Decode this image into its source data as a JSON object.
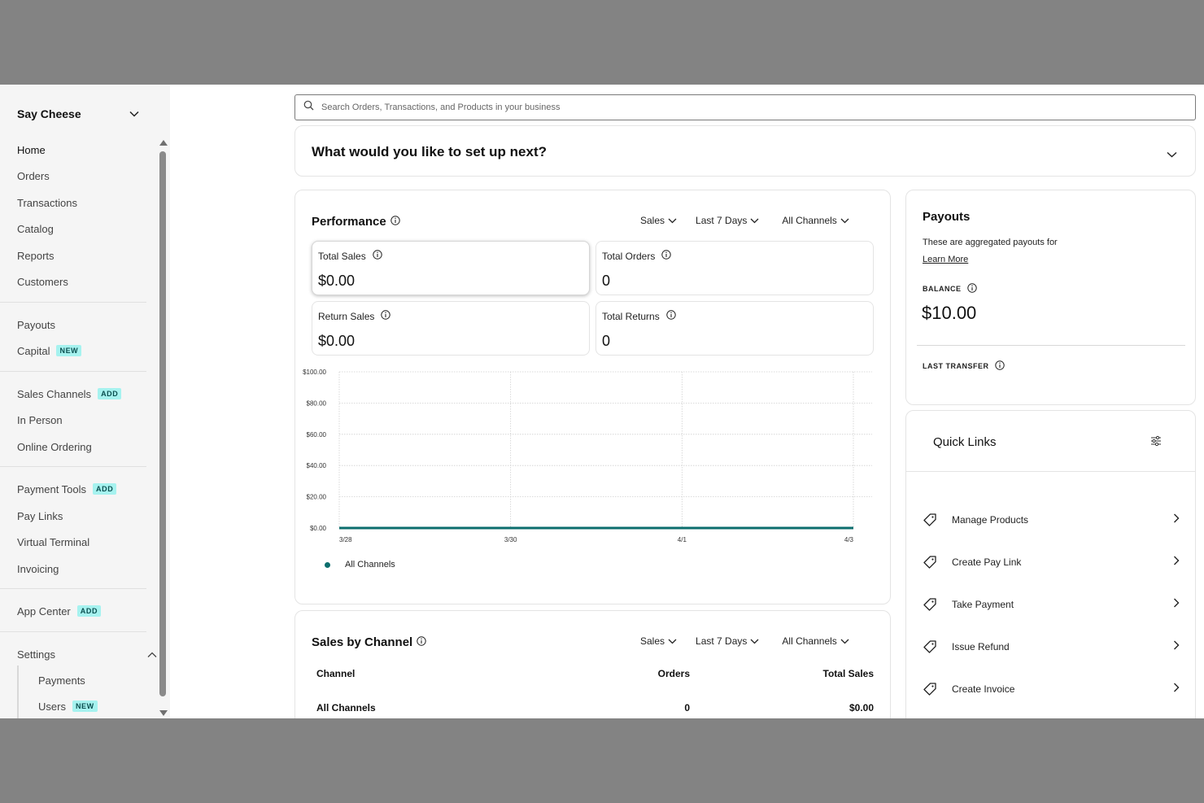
{
  "sidebar": {
    "business_name": "Say Cheese",
    "groups": [
      [
        {
          "label": "Home",
          "active": true
        },
        {
          "label": "Orders"
        },
        {
          "label": "Transactions"
        },
        {
          "label": "Catalog"
        },
        {
          "label": "Reports"
        },
        {
          "label": "Customers"
        }
      ],
      [
        {
          "label": "Payouts"
        },
        {
          "label": "Capital",
          "badge": "NEW"
        }
      ],
      [
        {
          "label": "Sales Channels",
          "badge": "ADD"
        },
        {
          "label": "In Person"
        },
        {
          "label": "Online Ordering"
        }
      ],
      [
        {
          "label": "Payment Tools",
          "badge": "ADD"
        },
        {
          "label": "Pay Links"
        },
        {
          "label": "Virtual Terminal"
        },
        {
          "label": "Invoicing"
        }
      ],
      [
        {
          "label": "App Center",
          "badge": "ADD"
        }
      ]
    ],
    "settings": {
      "label": "Settings",
      "children": [
        {
          "label": "Payments"
        },
        {
          "label": "Users",
          "badge": "NEW"
        }
      ]
    }
  },
  "search": {
    "placeholder": "Search Orders, Transactions, and Products in your business"
  },
  "setup": {
    "title": "What would you like to set up next?"
  },
  "performance": {
    "title": "Performance",
    "filters": [
      "Sales",
      "Last 7 Days",
      "All Channels"
    ],
    "metrics": [
      {
        "label": "Total Sales",
        "value": "$0.00",
        "selected": true
      },
      {
        "label": "Total Orders",
        "value": "0"
      },
      {
        "label": "Return Sales",
        "value": "$0.00"
      },
      {
        "label": "Total Returns",
        "value": "0"
      }
    ],
    "legend": "All Channels"
  },
  "chart_data": {
    "type": "line",
    "x": [
      "3/28",
      "3/30",
      "4/1",
      "4/3"
    ],
    "y_ticks": [
      "$100.00",
      "$80.00",
      "$60.00",
      "$40.00",
      "$20.00",
      "$0.00"
    ],
    "ylim": [
      0,
      100
    ],
    "series": [
      {
        "name": "All Channels",
        "color": "#0c6e6d",
        "values": [
          0,
          0,
          0,
          0
        ]
      }
    ],
    "grid": true,
    "legend_position": "bottom-left"
  },
  "sales_by_channel": {
    "title": "Sales by Channel",
    "filters": [
      "Sales",
      "Last 7 Days",
      "All Channels"
    ],
    "columns": [
      "Channel",
      "Orders",
      "Total Sales"
    ],
    "rows": [
      [
        "All Channels",
        "0",
        "$0.00"
      ]
    ]
  },
  "payouts": {
    "title": "Payouts",
    "description": "These are aggregated payouts for",
    "learn_more": "Learn More",
    "balance_label": "BALANCE",
    "balance": "$10.00",
    "last_transfer_label": "LAST TRANSFER"
  },
  "quick_links": {
    "title": "Quick Links",
    "items": [
      {
        "label": "Manage Products"
      },
      {
        "label": "Create Pay Link"
      },
      {
        "label": "Take Payment"
      },
      {
        "label": "Issue Refund"
      },
      {
        "label": "Create Invoice"
      }
    ]
  },
  "colors": {
    "accent": "#0c6e6d",
    "badge_bg": "#a6f2ef",
    "badge_text": "#0b4f50",
    "letterbox": "#838383"
  }
}
